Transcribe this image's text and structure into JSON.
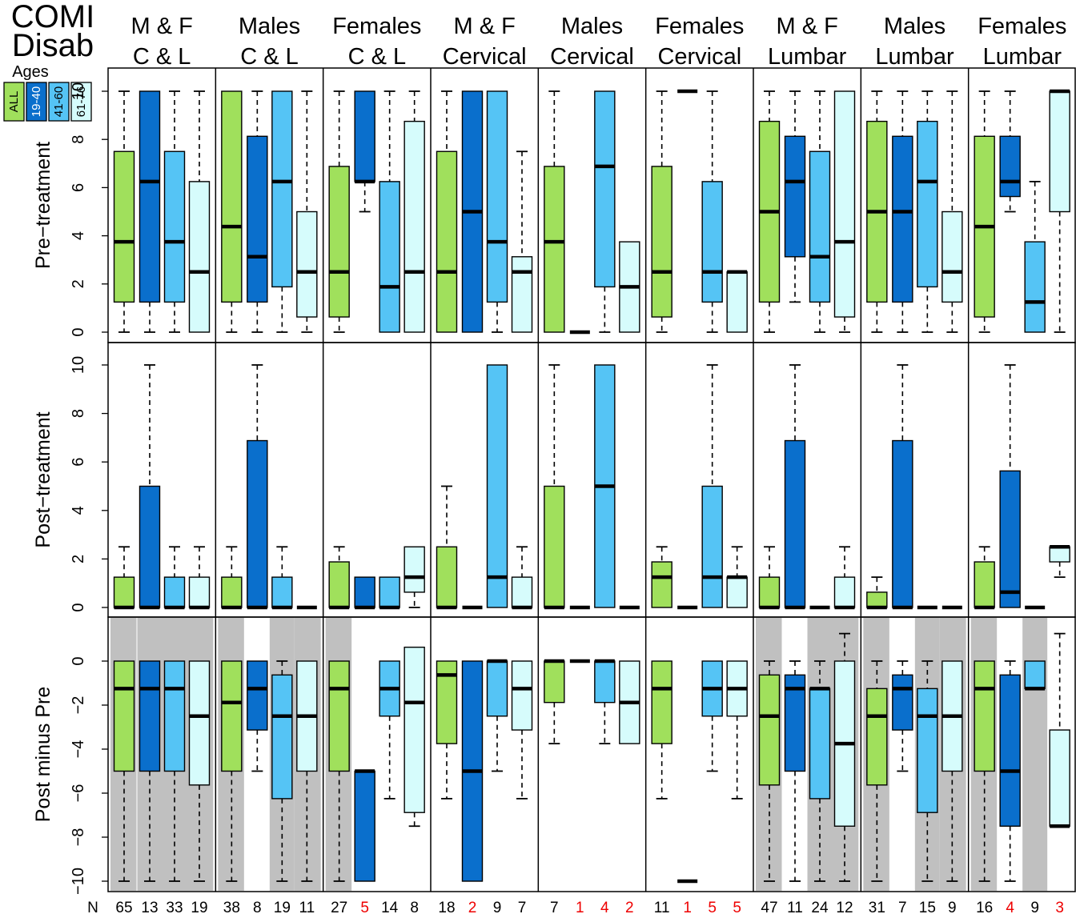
{
  "title_lines": [
    "COMI",
    "Disab"
  ],
  "legend": {
    "title": "Ages",
    "items": [
      {
        "label": "ALL",
        "color": "#a0e05c",
        "text_color": "#000000"
      },
      {
        "label": "19-40",
        "color": "#0a6fcc",
        "text_color": "#ffffff"
      },
      {
        "label": "41-60",
        "color": "#55c4f5",
        "text_color": "#000000"
      },
      {
        "label": "61-76",
        "color": "#d6fcfc",
        "text_color": "#000000"
      }
    ]
  },
  "colors": {
    "all": "#a0e05c",
    "age_19_40": "#0a6fcc",
    "age_41_60": "#55c4f5",
    "age_61_76": "#d6fcfc",
    "shade": "#c0c0c0",
    "n_small": "#ee0000"
  },
  "columns": [
    {
      "line1": "M & F",
      "line2": "C & L"
    },
    {
      "line1": "Males",
      "line2": "C & L"
    },
    {
      "line1": "Females",
      "line2": "C & L"
    },
    {
      "line1": "M & F",
      "line2": "Cervical"
    },
    {
      "line1": "Males",
      "line2": "Cervical"
    },
    {
      "line1": "Females",
      "line2": "Cervical"
    },
    {
      "line1": "M & F",
      "line2": "Lumbar"
    },
    {
      "line1": "Males",
      "line2": "Lumbar"
    },
    {
      "line1": "Females",
      "line2": "Lumbar"
    }
  ],
  "n_label": "N",
  "n_values": [
    [
      65,
      13,
      33,
      19
    ],
    [
      38,
      8,
      19,
      11
    ],
    [
      27,
      5,
      14,
      8
    ],
    [
      18,
      2,
      9,
      7
    ],
    [
      7,
      1,
      4,
      2
    ],
    [
      11,
      1,
      5,
      5
    ],
    [
      47,
      11,
      24,
      12
    ],
    [
      31,
      7,
      15,
      9
    ],
    [
      16,
      4,
      9,
      3
    ]
  ],
  "chart_data": {
    "type": "boxplot",
    "box_order": [
      "ALL",
      "19-40",
      "41-60",
      "61-76"
    ],
    "box_format": "[lower whisker, Q1, median, Q3, upper whisker]",
    "rows": [
      {
        "ylabel": "Pre−treatment",
        "ylim": [
          0,
          10
        ],
        "yticks": [
          0,
          2,
          4,
          6,
          8,
          10
        ],
        "shade": [],
        "columns": [
          [
            [
              0,
              1.25,
              3.75,
              7.5,
              10
            ],
            [
              0,
              1.25,
              6.25,
              10,
              10
            ],
            [
              0,
              1.25,
              3.75,
              7.5,
              10
            ],
            [
              0,
              0,
              2.5,
              6.25,
              10
            ]
          ],
          [
            [
              0,
              1.25,
              4.38,
              10,
              10
            ],
            [
              0,
              1.25,
              3.13,
              8.13,
              10
            ],
            [
              0,
              1.88,
              6.25,
              10,
              10
            ],
            [
              0,
              0.63,
              2.5,
              5,
              10
            ]
          ],
          [
            [
              0,
              0.63,
              2.5,
              6.88,
              10
            ],
            [
              5,
              6.25,
              6.25,
              10,
              10
            ],
            [
              0,
              0,
              1.88,
              6.25,
              10
            ],
            [
              0,
              0,
              2.5,
              8.75,
              10
            ]
          ],
          [
            [
              0,
              0,
              2.5,
              7.5,
              10
            ],
            [
              0,
              0,
              5,
              10,
              10
            ],
            [
              0,
              1.25,
              3.75,
              10,
              10
            ],
            [
              0,
              0,
              2.5,
              3.13,
              7.5
            ]
          ],
          [
            [
              0,
              0,
              3.75,
              6.88,
              10
            ],
            [
              0,
              0,
              0,
              0,
              0
            ],
            [
              0,
              1.88,
              6.88,
              10,
              10
            ],
            [
              0,
              0,
              1.88,
              3.75,
              3.75
            ]
          ],
          [
            [
              0,
              0.63,
              2.5,
              6.88,
              10
            ],
            [
              10,
              10,
              10,
              10,
              10
            ],
            [
              0,
              1.25,
              2.5,
              6.25,
              10
            ],
            [
              0,
              0,
              2.5,
              2.5,
              2.5
            ]
          ],
          [
            [
              0,
              1.25,
              5,
              8.75,
              10
            ],
            [
              1.25,
              3.13,
              6.25,
              8.13,
              10
            ],
            [
              0,
              1.25,
              3.13,
              7.5,
              10
            ],
            [
              0,
              0.63,
              3.75,
              10,
              10
            ]
          ],
          [
            [
              0,
              1.25,
              5,
              8.75,
              10
            ],
            [
              0,
              1.25,
              5,
              8.13,
              10
            ],
            [
              0,
              1.88,
              6.25,
              8.75,
              10
            ],
            [
              0,
              1.25,
              2.5,
              5,
              10
            ]
          ],
          [
            [
              0,
              0.63,
              4.38,
              8.13,
              10
            ],
            [
              5,
              5.63,
              6.25,
              8.13,
              10
            ],
            [
              0,
              0,
              1.25,
              3.75,
              6.25
            ],
            [
              0,
              5,
              10,
              10,
              10
            ]
          ]
        ]
      },
      {
        "ylabel": "Post−treatment",
        "ylim": [
          0,
          10
        ],
        "yticks": [
          0,
          2,
          4,
          6,
          8,
          10
        ],
        "shade": [],
        "columns": [
          [
            [
              0,
              0,
              0,
              1.25,
              2.5
            ],
            [
              0,
              0,
              0,
              5,
              10
            ],
            [
              0,
              0,
              0,
              1.25,
              2.5
            ],
            [
              0,
              0,
              0,
              1.25,
              2.5
            ]
          ],
          [
            [
              0,
              0,
              0,
              1.25,
              2.5
            ],
            [
              0,
              0,
              0,
              6.88,
              10
            ],
            [
              0,
              0,
              0,
              1.25,
              2.5
            ],
            [
              0,
              0,
              0,
              0,
              0
            ]
          ],
          [
            [
              0,
              0,
              0,
              1.88,
              2.5
            ],
            [
              0,
              0,
              0,
              1.25,
              1.25
            ],
            [
              0,
              0,
              0,
              1.25,
              1.25
            ],
            [
              0,
              0.63,
              1.25,
              2.5,
              2.5
            ]
          ],
          [
            [
              0,
              0,
              0,
              2.5,
              5
            ],
            [
              0,
              0,
              0,
              0,
              0
            ],
            [
              0,
              0,
              1.25,
              10,
              10
            ],
            [
              0,
              0,
              0,
              1.25,
              2.5
            ]
          ],
          [
            [
              0,
              0,
              0,
              5,
              10
            ],
            [
              0,
              0,
              0,
              0,
              0
            ],
            [
              0,
              0,
              5,
              10,
              10
            ],
            [
              0,
              0,
              0,
              0,
              0
            ]
          ],
          [
            [
              0,
              0,
              1.25,
              1.88,
              2.5
            ],
            [
              0,
              0,
              0,
              0,
              0
            ],
            [
              0,
              0,
              1.25,
              5,
              10
            ],
            [
              0,
              0,
              1.25,
              1.25,
              2.5
            ]
          ],
          [
            [
              0,
              0,
              0,
              1.25,
              2.5
            ],
            [
              0,
              0,
              0,
              6.88,
              10
            ],
            [
              0,
              0,
              0,
              0,
              0
            ],
            [
              0,
              0,
              0,
              1.25,
              2.5
            ]
          ],
          [
            [
              0,
              0,
              0,
              0.63,
              1.25
            ],
            [
              0,
              0,
              0,
              6.88,
              10
            ],
            [
              0,
              0,
              0,
              0,
              0
            ],
            [
              0,
              0,
              0,
              0,
              0
            ]
          ],
          [
            [
              0,
              0,
              0,
              1.88,
              2.5
            ],
            [
              0,
              0,
              0.63,
              5.63,
              10
            ],
            [
              0,
              0,
              0,
              0,
              0
            ],
            [
              1.25,
              1.88,
              2.5,
              2.5,
              2.5
            ]
          ]
        ]
      },
      {
        "ylabel": "Post minus Pre",
        "ylim": [
          -10,
          0
        ],
        "yticks": [
          -10,
          -8,
          -6,
          -4,
          -2,
          0
        ],
        "shade": [
          [
            true,
            true,
            true,
            true
          ],
          [
            true,
            false,
            true,
            true
          ],
          [
            true,
            false,
            false,
            false
          ],
          [
            false,
            false,
            false,
            false
          ],
          [
            false,
            false,
            false,
            false
          ],
          [
            false,
            false,
            false,
            false
          ],
          [
            true,
            false,
            true,
            true
          ],
          [
            true,
            false,
            true,
            true
          ],
          [
            true,
            false,
            true,
            false
          ]
        ],
        "columns": [
          [
            [
              -10,
              -5,
              -1.25,
              0,
              0
            ],
            [
              -10,
              -5,
              -1.25,
              0,
              0
            ],
            [
              -10,
              -5,
              -1.25,
              0,
              0
            ],
            [
              -10,
              -5.63,
              -2.5,
              0,
              0
            ]
          ],
          [
            [
              -10,
              -5,
              -1.88,
              0,
              0
            ],
            [
              -5,
              -3.13,
              -1.25,
              0,
              0
            ],
            [
              -10,
              -6.25,
              -2.5,
              -0.63,
              0
            ],
            [
              -10,
              -5,
              -2.5,
              0,
              0
            ]
          ],
          [
            [
              -10,
              -5,
              -1.25,
              0,
              0
            ],
            [
              -10,
              -10,
              -5,
              -5,
              -5
            ],
            [
              -6.25,
              -2.5,
              -1.25,
              0,
              0
            ],
            [
              -7.5,
              -6.88,
              -1.88,
              0.63,
              0.63
            ]
          ],
          [
            [
              -6.25,
              -3.75,
              -0.63,
              0,
              0
            ],
            [
              -10,
              -10,
              -5,
              0,
              0
            ],
            [
              -5,
              -2.5,
              0,
              0,
              0
            ],
            [
              -6.25,
              -3.13,
              -1.25,
              0,
              0
            ]
          ],
          [
            [
              -3.75,
              -1.88,
              0,
              0,
              0
            ],
            [
              0,
              0,
              0,
              0,
              0
            ],
            [
              -3.75,
              -1.88,
              0,
              0,
              0
            ],
            [
              -3.75,
              -3.75,
              -1.88,
              0,
              0
            ]
          ],
          [
            [
              -6.25,
              -3.75,
              -1.25,
              0,
              0
            ],
            [
              -10,
              -10,
              -10,
              -10,
              -10
            ],
            [
              -5,
              -2.5,
              -1.25,
              0,
              0
            ],
            [
              -6.25,
              -2.5,
              -1.25,
              0,
              0
            ]
          ],
          [
            [
              -10,
              -5.63,
              -2.5,
              -0.63,
              0
            ],
            [
              -10,
              -5,
              -1.25,
              -0.63,
              0
            ],
            [
              -10,
              -6.25,
              -1.25,
              -1.25,
              0
            ],
            [
              -10,
              -7.5,
              -3.75,
              0,
              1.25
            ]
          ],
          [
            [
              -10,
              -5.63,
              -2.5,
              -1.25,
              0
            ],
            [
              -5,
              -3.13,
              -1.25,
              -0.63,
              0
            ],
            [
              -10,
              -6.88,
              -2.5,
              -1.25,
              0
            ],
            [
              -10,
              -5,
              -2.5,
              0,
              0
            ]
          ],
          [
            [
              -10,
              -5,
              -1.25,
              0,
              0
            ],
            [
              -10,
              -7.5,
              -5,
              -0.63,
              0
            ],
            [
              -1.25,
              -1.25,
              -1.25,
              0,
              0
            ],
            [
              -7.5,
              -7.5,
              -7.5,
              -3.13,
              1.25
            ]
          ]
        ]
      }
    ]
  }
}
